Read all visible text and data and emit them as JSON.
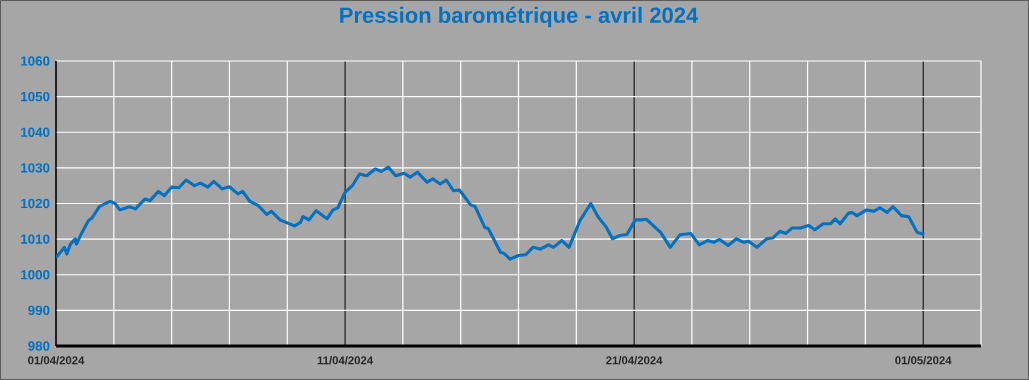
{
  "chart_data": {
    "type": "line",
    "title": "Pression barométrique - avril 2024",
    "color": "#0070c0",
    "grid": true,
    "marker": "none",
    "line_style": "solid",
    "ylim": [
      980,
      1060
    ],
    "yticks": [
      980,
      990,
      1000,
      1010,
      1020,
      1030,
      1040,
      1050,
      1060
    ],
    "xlim": [
      "2024-04-01",
      "2024-05-03"
    ],
    "xticks": [
      {
        "value": "2024-04-01",
        "label": "01/04/2024"
      },
      {
        "value": "2024-04-03",
        "label": null
      },
      {
        "value": "2024-04-05",
        "label": null
      },
      {
        "value": "2024-04-07",
        "label": null
      },
      {
        "value": "2024-04-09",
        "label": null
      },
      {
        "value": "2024-04-11",
        "label": "11/04/2024"
      },
      {
        "value": "2024-04-13",
        "label": null
      },
      {
        "value": "2024-04-15",
        "label": null
      },
      {
        "value": "2024-04-17",
        "label": null
      },
      {
        "value": "2024-04-19",
        "label": null
      },
      {
        "value": "2024-04-21",
        "label": "21/04/2024"
      },
      {
        "value": "2024-04-23",
        "label": null
      },
      {
        "value": "2024-04-25",
        "label": null
      },
      {
        "value": "2024-04-27",
        "label": null
      },
      {
        "value": "2024-04-29",
        "label": null
      },
      {
        "value": "2024-05-01",
        "label": "01/05/2024"
      },
      {
        "value": "2024-05-03",
        "label": null
      }
    ],
    "x": [
      "2024-04-01T00:00",
      "2024-04-01T07:00",
      "2024-04-01T09:00",
      "2024-04-01T12:00",
      "2024-04-01T16:00",
      "2024-04-01T17:00",
      "2024-04-01T21:00",
      "2024-04-02T03:00",
      "2024-04-02T06:00",
      "2024-04-02T12:00",
      "2024-04-02T17:00",
      "2024-04-02T21:00",
      "2024-04-03T01:00",
      "2024-04-03T05:00",
      "2024-04-03T13:00",
      "2024-04-03T18:00",
      "2024-04-04T02:00",
      "2024-04-04T06:00",
      "2024-04-04T13:00",
      "2024-04-04T18:00",
      "2024-04-05T00:00",
      "2024-04-05T06:00",
      "2024-04-05T12:00",
      "2024-04-05T19:00",
      "2024-04-06T00:00",
      "2024-04-06T06:00",
      "2024-04-06T11:00",
      "2024-04-06T18:00",
      "2024-04-07T00:00",
      "2024-04-07T07:00",
      "2024-04-07T11:00",
      "2024-04-07T17:00",
      "2024-04-08T00:00",
      "2024-04-08T07:00",
      "2024-04-08T11:00",
      "2024-04-08T18:00",
      "2024-04-09T01:00",
      "2024-04-09T06:00",
      "2024-04-09T11:00",
      "2024-04-09T13:00",
      "2024-04-09T18:00",
      "2024-04-10T00:00",
      "2024-04-10T09:00",
      "2024-04-10T14:00",
      "2024-04-10T18:00",
      "2024-04-11T00:00",
      "2024-04-11T06:00",
      "2024-04-11T12:00",
      "2024-04-11T18:00",
      "2024-04-12T01:00",
      "2024-04-12T06:00",
      "2024-04-12T12:00",
      "2024-04-12T18:00",
      "2024-04-13T01:00",
      "2024-04-13T06:00",
      "2024-04-13T12:00",
      "2024-04-13T20:00",
      "2024-04-14T01:00",
      "2024-04-14T07:00",
      "2024-04-14T12:00",
      "2024-04-14T18:00",
      "2024-04-14T23:00",
      "2024-04-15T08:00",
      "2024-04-15T12:00",
      "2024-04-15T20:00",
      "2024-04-15T23:00",
      "2024-04-16T09:00",
      "2024-04-16T12:00",
      "2024-04-16T17:00",
      "2024-04-17T00:00",
      "2024-04-17T06:00",
      "2024-04-17T12:00",
      "2024-04-17T18:00",
      "2024-04-18T01:00",
      "2024-04-18T05:00",
      "2024-04-18T12:00",
      "2024-04-18T18:00",
      "2024-04-19T03:00",
      "2024-04-19T12:00",
      "2024-04-19T18:00",
      "2024-04-20T01:00",
      "2024-04-20T06:00",
      "2024-04-20T12:00",
      "2024-04-20T18:00",
      "2024-04-21T01:00",
      "2024-04-21T06:00",
      "2024-04-21T10:00",
      "2024-04-21T22:00",
      "2024-04-22T06:00",
      "2024-04-22T14:00",
      "2024-04-22T23:00",
      "2024-04-23T06:00",
      "2024-04-23T13:00",
      "2024-04-23T18:00",
      "2024-04-23T23:00",
      "2024-04-24T06:00",
      "2024-04-24T13:00",
      "2024-04-24T19:00",
      "2024-04-24T23:00",
      "2024-04-25T06:00",
      "2024-04-25T14:00",
      "2024-04-25T19:00",
      "2024-04-26T01:00",
      "2024-04-26T06:00",
      "2024-04-26T11:00",
      "2024-04-26T18:00",
      "2024-04-27T01:00",
      "2024-04-27T06:00",
      "2024-04-27T13:00",
      "2024-04-27T19:00",
      "2024-04-27T23:00",
      "2024-04-28T03:00",
      "2024-04-28T10:00",
      "2024-04-28T13:00",
      "2024-04-28T17:00",
      "2024-04-29T01:00",
      "2024-04-29T07:00",
      "2024-04-29T12:00",
      "2024-04-29T18:00",
      "2024-04-29T23:00",
      "2024-04-30T06:00",
      "2024-04-30T12:00",
      "2024-04-30T19:00",
      "2024-05-01T01:00"
    ],
    "values": [
      1004.8,
      1007.7,
      1005.8,
      1008.6,
      1010.1,
      1008.6,
      1011.5,
      1015.2,
      1016,
      1019.1,
      1020,
      1020.6,
      1020,
      1018.2,
      1019.1,
      1018.5,
      1021.3,
      1020.8,
      1023.4,
      1022.2,
      1024.6,
      1024.4,
      1026.6,
      1025,
      1025.7,
      1024.6,
      1026.2,
      1024.1,
      1024.7,
      1022.7,
      1023.4,
      1020.6,
      1019.4,
      1016.9,
      1017.8,
      1015.4,
      1014.4,
      1013.7,
      1014.7,
      1016.3,
      1015.4,
      1018,
      1015.7,
      1018.2,
      1018.8,
      1023.1,
      1025,
      1028.3,
      1027.8,
      1029.7,
      1029,
      1030.2,
      1027.8,
      1028.5,
      1027.4,
      1028.8,
      1026,
      1026.9,
      1025.5,
      1026.6,
      1023.6,
      1023.8,
      1019.7,
      1019.1,
      1013.3,
      1012.9,
      1006.3,
      1006,
      1004.4,
      1005.4,
      1005.6,
      1007.7,
      1007.2,
      1008.4,
      1007.7,
      1009.6,
      1007.7,
      1015.2,
      1020,
      1016.3,
      1013.3,
      1010.1,
      1011,
      1011.3,
      1015.4,
      1015.4,
      1015.6,
      1011.9,
      1007.7,
      1011.2,
      1011.6,
      1008.4,
      1009.6,
      1009.1,
      1009.9,
      1008.2,
      1010.1,
      1009.1,
      1009.4,
      1007.7,
      1010.1,
      1010.3,
      1012.2,
      1011.6,
      1013.1,
      1013.1,
      1013.8,
      1012.6,
      1014.3,
      1014.3,
      1015.7,
      1014.3,
      1017.3,
      1017.5,
      1016.6,
      1018.2,
      1017.8,
      1018.8,
      1017.5,
      1019.1,
      1016.6,
      1016.3,
      1011.9,
      1011.3
    ]
  }
}
